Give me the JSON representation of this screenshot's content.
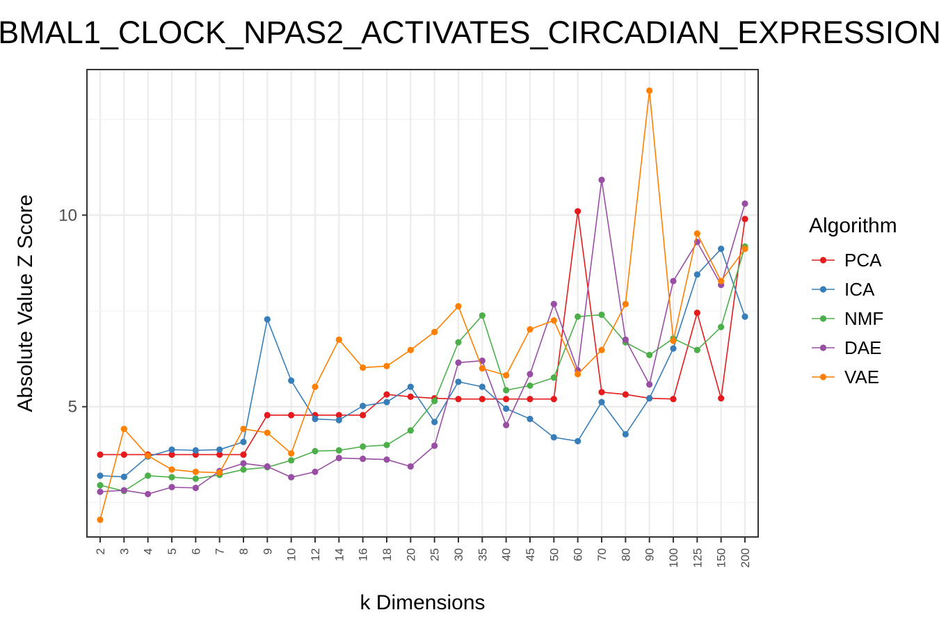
{
  "chart_data": {
    "type": "line",
    "title": "BMAL1_CLOCK_NPAS2_ACTIVATES_CIRCADIAN_EXPRESSION",
    "xlabel": "k Dimensions",
    "ylabel": "Absolute Value Z Score",
    "categories": [
      "2",
      "3",
      "4",
      "5",
      "6",
      "7",
      "8",
      "9",
      "10",
      "12",
      "14",
      "16",
      "18",
      "20",
      "25",
      "30",
      "35",
      "40",
      "45",
      "50",
      "60",
      "70",
      "80",
      "90",
      "100",
      "125",
      "150",
      "200"
    ],
    "ylim": [
      1.6,
      13.8
    ],
    "yticks": [
      5,
      10
    ],
    "grid": true,
    "legend": {
      "title": "Algorithm",
      "position": "right"
    },
    "series": [
      {
        "name": "PCA",
        "color": "#e41a1c",
        "values": [
          3.75,
          3.75,
          3.75,
          3.75,
          3.75,
          3.75,
          3.75,
          4.78,
          4.78,
          4.78,
          4.78,
          4.78,
          5.32,
          5.26,
          5.22,
          5.2,
          5.2,
          5.2,
          5.2,
          5.2,
          10.1,
          5.38,
          5.32,
          5.22,
          5.2,
          7.45,
          5.22,
          9.9
        ]
      },
      {
        "name": "ICA",
        "color": "#377eb8",
        "values": [
          3.2,
          3.17,
          3.7,
          3.88,
          3.86,
          3.88,
          4.08,
          7.28,
          5.68,
          4.68,
          4.65,
          5.02,
          5.12,
          5.52,
          4.6,
          5.65,
          5.52,
          4.95,
          4.68,
          4.2,
          4.1,
          5.12,
          4.28,
          5.22,
          6.52,
          8.45,
          9.12,
          7.35
        ]
      },
      {
        "name": "NMF",
        "color": "#4daf4a",
        "values": [
          2.95,
          2.8,
          3.2,
          3.16,
          3.12,
          3.22,
          3.36,
          3.42,
          3.6,
          3.84,
          3.86,
          3.96,
          4.0,
          4.38,
          5.15,
          6.68,
          7.38,
          5.43,
          5.55,
          5.76,
          7.35,
          7.4,
          6.68,
          6.35,
          6.78,
          6.48,
          7.08,
          9.18
        ]
      },
      {
        "name": "DAE",
        "color": "#984ea3",
        "values": [
          2.78,
          2.82,
          2.72,
          2.9,
          2.88,
          3.32,
          3.52,
          3.44,
          3.16,
          3.3,
          3.66,
          3.64,
          3.62,
          3.44,
          3.98,
          6.15,
          6.2,
          4.52,
          5.85,
          7.68,
          5.95,
          10.92,
          6.75,
          5.58,
          8.28,
          9.3,
          8.18,
          10.3
        ]
      },
      {
        "name": "VAE",
        "color": "#ff7f00",
        "values": [
          2.05,
          4.42,
          3.72,
          3.36,
          3.3,
          3.28,
          4.42,
          4.32,
          3.78,
          5.52,
          6.75,
          6.02,
          6.06,
          6.48,
          6.95,
          7.62,
          6.0,
          5.82,
          7.02,
          7.25,
          5.85,
          6.48,
          7.68,
          13.25,
          6.72,
          9.52,
          8.28,
          9.12
        ]
      }
    ]
  }
}
